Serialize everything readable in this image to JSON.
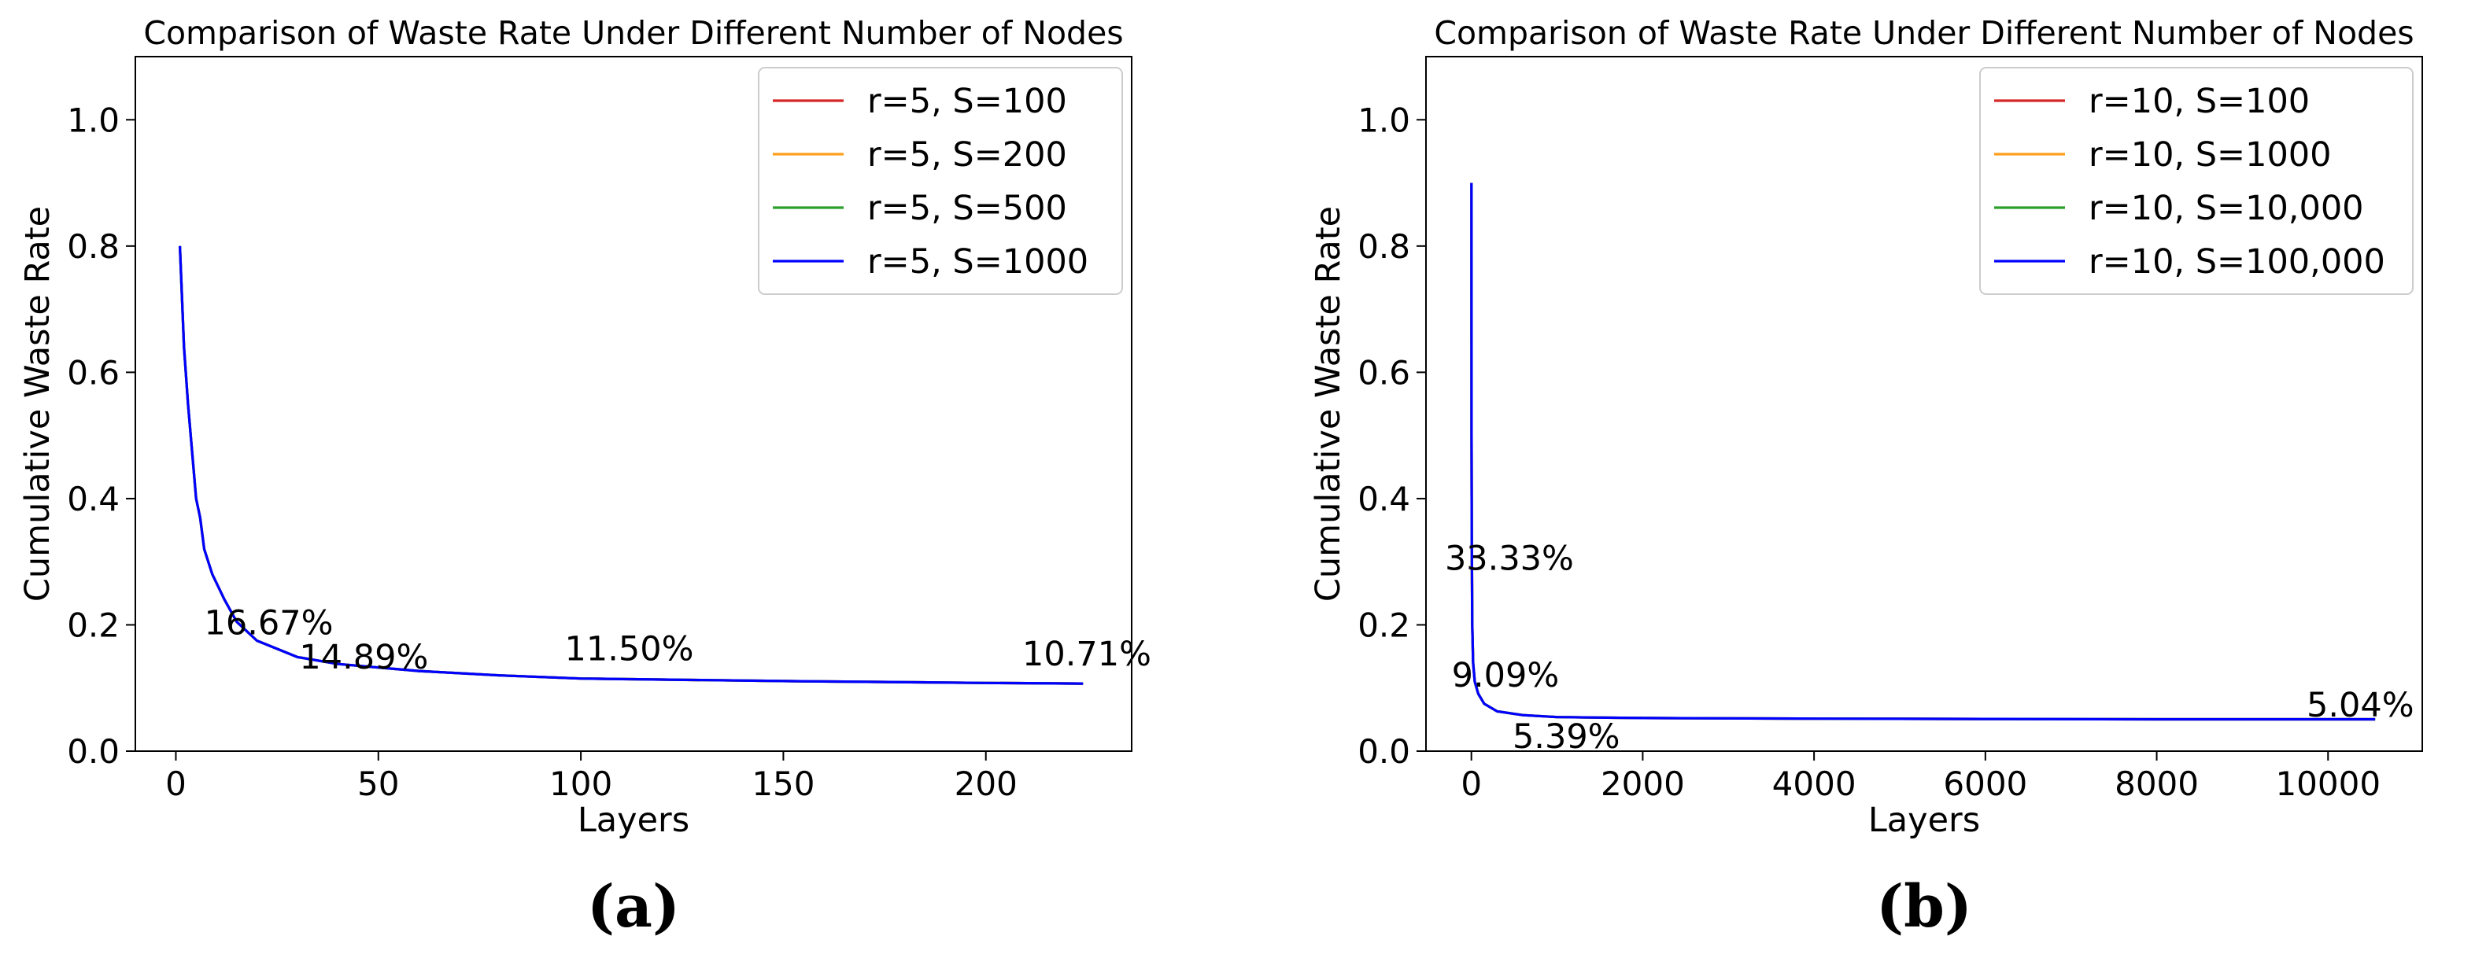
{
  "chart_data": [
    {
      "type": "line",
      "title": "Comparison of Waste Rate Under Different Number of Nodes",
      "xlabel": "Layers",
      "ylabel": "Cumulative Waste Rate",
      "xlim": [
        -10,
        236
      ],
      "ylim": [
        0,
        1.1
      ],
      "xticks": [
        0,
        50,
        100,
        150,
        200
      ],
      "yticks": [
        0.0,
        0.2,
        0.4,
        0.6,
        0.8,
        1.0
      ],
      "xtick_labels": [
        "0",
        "50",
        "100",
        "150",
        "200"
      ],
      "ytick_labels": [
        "0.0",
        "0.2",
        "0.4",
        "0.6",
        "0.8",
        "1.0"
      ],
      "legend_position": "top-right",
      "grid": false,
      "panel_label": "(a)",
      "series": [
        {
          "name": "r=5, S=100",
          "color": "#d62728",
          "x": [
            1,
            2,
            3,
            5,
            6,
            7,
            9,
            12,
            15,
            20,
            30,
            40,
            60,
            80,
            100,
            150,
            200,
            224
          ],
          "y": [
            0.8,
            0.64,
            0.55,
            0.4,
            0.37,
            0.32,
            0.28,
            0.24,
            0.205,
            0.175,
            0.149,
            0.138,
            0.127,
            0.12,
            0.115,
            0.111,
            0.108,
            0.107
          ]
        },
        {
          "name": "r=5, S=200",
          "color": "#ff9f1c",
          "x": [
            1,
            2,
            3,
            5,
            6,
            7,
            9,
            12,
            15,
            20,
            30,
            40,
            60,
            80,
            100,
            150,
            200,
            224
          ],
          "y": [
            0.8,
            0.64,
            0.55,
            0.4,
            0.37,
            0.32,
            0.28,
            0.24,
            0.205,
            0.175,
            0.149,
            0.138,
            0.127,
            0.12,
            0.115,
            0.111,
            0.108,
            0.107
          ]
        },
        {
          "name": "r=5, S=500",
          "color": "#2ca02c",
          "x": [
            1,
            2,
            3,
            5,
            6,
            7,
            9,
            12,
            15,
            20,
            30,
            40,
            60,
            80,
            100,
            150,
            200,
            224
          ],
          "y": [
            0.8,
            0.64,
            0.55,
            0.4,
            0.37,
            0.32,
            0.28,
            0.24,
            0.205,
            0.175,
            0.149,
            0.138,
            0.127,
            0.12,
            0.115,
            0.111,
            0.108,
            0.107
          ]
        },
        {
          "name": "r=5, S=1000",
          "color": "#0000ff",
          "x": [
            1,
            2,
            3,
            5,
            6,
            7,
            9,
            12,
            15,
            20,
            30,
            40,
            60,
            80,
            100,
            150,
            200,
            224
          ],
          "y": [
            0.8,
            0.64,
            0.55,
            0.4,
            0.37,
            0.32,
            0.28,
            0.24,
            0.205,
            0.175,
            0.149,
            0.138,
            0.127,
            0.12,
            0.115,
            0.111,
            0.108,
            0.107
          ]
        }
      ],
      "annotations": [
        {
          "text": "16.67%",
          "x": 7,
          "y": 0.185
        },
        {
          "text": "14.89%",
          "x": 30.5,
          "y": 0.131
        },
        {
          "text": "11.50%",
          "x": 96,
          "y": 0.144
        },
        {
          "text": "10.71%",
          "x": 209,
          "y": 0.136
        }
      ]
    },
    {
      "type": "line",
      "title": "Comparison of Waste Rate Under Different Number of Nodes",
      "xlabel": "Layers",
      "ylabel": "Cumulative Waste Rate",
      "xlim": [
        -530,
        11100
      ],
      "ylim": [
        0,
        1.1
      ],
      "xticks": [
        0,
        2000,
        4000,
        6000,
        8000,
        10000
      ],
      "yticks": [
        0.0,
        0.2,
        0.4,
        0.6,
        0.8,
        1.0
      ],
      "xtick_labels": [
        "0",
        "2000",
        "4000",
        "6000",
        "8000",
        "10000"
      ],
      "ytick_labels": [
        "0.0",
        "0.2",
        "0.4",
        "0.6",
        "0.8",
        "1.0"
      ],
      "legend_position": "top-right",
      "grid": false,
      "panel_label": "(b)",
      "series": [
        {
          "name": "r=10, S=100",
          "color": "#d62728",
          "x": [
            1,
            2,
            5,
            10,
            20,
            40,
            80,
            150,
            300,
            600,
            1000,
            2000,
            4000,
            6000,
            8000,
            10550
          ],
          "y": [
            0.9,
            0.5,
            0.333,
            0.2,
            0.14,
            0.11,
            0.091,
            0.075,
            0.063,
            0.057,
            0.054,
            0.0525,
            0.0515,
            0.051,
            0.0505,
            0.0504
          ]
        },
        {
          "name": "r=10, S=1000",
          "color": "#ff9f1c",
          "x": [
            1,
            2,
            5,
            10,
            20,
            40,
            80,
            150,
            300,
            600,
            1000,
            2000,
            4000,
            6000,
            8000,
            10550
          ],
          "y": [
            0.9,
            0.5,
            0.333,
            0.2,
            0.14,
            0.11,
            0.091,
            0.075,
            0.063,
            0.057,
            0.054,
            0.0525,
            0.0515,
            0.051,
            0.0505,
            0.0504
          ]
        },
        {
          "name": "r=10, S=10,000",
          "color": "#2ca02c",
          "x": [
            1,
            2,
            5,
            10,
            20,
            40,
            80,
            150,
            300,
            600,
            1000,
            2000,
            4000,
            6000,
            8000,
            10550
          ],
          "y": [
            0.9,
            0.5,
            0.333,
            0.2,
            0.14,
            0.11,
            0.091,
            0.075,
            0.063,
            0.057,
            0.054,
            0.0525,
            0.0515,
            0.051,
            0.0505,
            0.0504
          ]
        },
        {
          "name": "r=10, S=100,000",
          "color": "#0000ff",
          "x": [
            1,
            2,
            5,
            10,
            20,
            40,
            80,
            150,
            300,
            600,
            1000,
            2000,
            4000,
            6000,
            8000,
            10550
          ],
          "y": [
            0.9,
            0.5,
            0.333,
            0.2,
            0.14,
            0.11,
            0.091,
            0.075,
            0.063,
            0.057,
            0.054,
            0.0525,
            0.0515,
            0.051,
            0.0505,
            0.0504
          ]
        }
      ],
      "annotations": [
        {
          "text": "33.33%",
          "x": -310,
          "y": 0.287
        },
        {
          "text": "9.09%",
          "x": -230,
          "y": 0.102
        },
        {
          "text": "5.39%",
          "x": 480,
          "y": 0.005
        },
        {
          "text": "5.04%",
          "x": 9750,
          "y": 0.055
        }
      ]
    }
  ]
}
